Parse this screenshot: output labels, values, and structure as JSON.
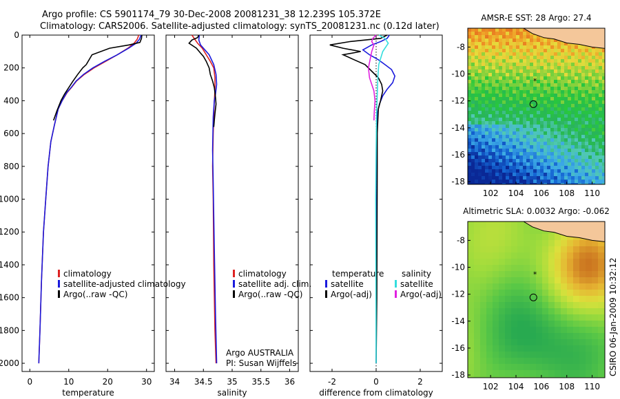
{
  "header": {
    "line1": "Argo profile: CS 5901174_79 30-Dec-2008 20081231_38 12.239S 105.372E",
    "line2": "Climatology: CARS2006. Satellite-adjusted climatology: synTS_20081231.nc (0.12d later)"
  },
  "footer": {
    "stamp": "CSIRO 06-Jan-2009 10:32:12"
  },
  "colors": {
    "red": "#dd2222",
    "blue": "#1a1adc",
    "black": "#000000",
    "cyan": "#33dddd",
    "magenta": "#e020e0"
  },
  "chart_data": [
    {
      "type": "line",
      "xlabel": "temperature",
      "xlim": [
        -2,
        32
      ],
      "xticks": [
        0,
        10,
        20,
        30
      ],
      "ylim": [
        0,
        2050
      ],
      "yticks": [
        0,
        200,
        400,
        600,
        800,
        1000,
        1200,
        1400,
        1600,
        1800,
        2000
      ],
      "legend": [
        "climatology",
        "satellite-adjusted climatology",
        "Argo(..raw -QC)"
      ],
      "series": [
        {
          "name": "climatology",
          "color": "red",
          "x": [
            28,
            27.6,
            26.8,
            25.2,
            22.5,
            19.5,
            16.5,
            14,
            12,
            10.7,
            9.6,
            8.3,
            7.3,
            6.3,
            5.4,
            4.7,
            4.1,
            3.5,
            3.0,
            2.6,
            2.3
          ],
          "y": [
            0,
            25,
            50,
            80,
            120,
            160,
            200,
            240,
            280,
            320,
            350,
            400,
            450,
            550,
            650,
            800,
            1000,
            1200,
            1500,
            1800,
            2000
          ]
        },
        {
          "name": "satellite-adjusted climatology",
          "color": "blue",
          "x": [
            28.6,
            28.2,
            27.3,
            25.4,
            22.5,
            19.2,
            16.2,
            13.8,
            11.9,
            10.6,
            9.5,
            8.3,
            7.3,
            6.3,
            5.4,
            4.7,
            4.1,
            3.5,
            3.0,
            2.6,
            2.3
          ],
          "y": [
            0,
            25,
            50,
            80,
            120,
            160,
            200,
            240,
            280,
            320,
            350,
            400,
            450,
            550,
            650,
            800,
            1000,
            1200,
            1500,
            1800,
            2000
          ]
        },
        {
          "name": "Argo(..raw -QC)",
          "color": "black",
          "x": [
            28.8,
            28.7,
            28.3,
            25.5,
            20.5,
            16,
            14.5,
            13.6,
            12.3,
            11.1,
            10.0,
            8.9,
            8.0,
            7.0,
            6.1
          ],
          "y": [
            0,
            20,
            45,
            60,
            80,
            120,
            180,
            200,
            240,
            280,
            320,
            360,
            400,
            460,
            520
          ]
        }
      ]
    },
    {
      "type": "line",
      "xlabel": "salinity",
      "xlim": [
        33.85,
        36.15
      ],
      "xticks": [
        34,
        34.5,
        35,
        35.5,
        36
      ],
      "ylim": [
        0,
        2050
      ],
      "legend": [
        "climatology",
        "satellite adj. clim.",
        "Argo(..raw -QC)"
      ],
      "annotations": [
        "Argo AUSTRALIA",
        "PI: Susan Wijffels"
      ],
      "series": [
        {
          "name": "climatology",
          "color": "red",
          "x": [
            34.3,
            34.35,
            34.4,
            34.48,
            34.55,
            34.62,
            34.68,
            34.7,
            34.7,
            34.69,
            34.68,
            34.67,
            34.66,
            34.67,
            34.68,
            34.7,
            34.72
          ],
          "y": [
            0,
            25,
            50,
            80,
            120,
            160,
            200,
            260,
            340,
            400,
            500,
            600,
            800,
            1000,
            1400,
            1800,
            2000
          ]
        },
        {
          "name": "satellite adj. clim.",
          "color": "blue",
          "x": [
            34.43,
            34.42,
            34.45,
            34.6,
            34.68,
            34.72,
            34.73,
            34.71,
            34.69,
            34.67,
            34.66,
            34.67,
            34.69,
            34.71,
            34.73
          ],
          "y": [
            0,
            30,
            60,
            120,
            180,
            240,
            300,
            360,
            400,
            500,
            700,
            900,
            1300,
            1700,
            2000
          ]
        },
        {
          "name": "Argo(..raw -QC)",
          "color": "black",
          "x": [
            34.42,
            34.4,
            34.3,
            34.25,
            34.38,
            34.45,
            34.5,
            34.55,
            34.6,
            34.62,
            34.66,
            34.69,
            34.7,
            34.71,
            34.72,
            34.71,
            34.7,
            34.69,
            34.68
          ],
          "y": [
            0,
            15,
            30,
            50,
            80,
            110,
            130,
            160,
            200,
            240,
            280,
            320,
            350,
            380,
            420,
            450,
            480,
            520,
            560
          ]
        }
      ]
    },
    {
      "type": "line",
      "xlabel": "difference from climatology",
      "xlim": [
        -3,
        3
      ],
      "xticks": [
        -2,
        0,
        2
      ],
      "ylim": [
        0,
        2050
      ],
      "legend_left_title": "temperature",
      "legend_left": [
        "satellite",
        "Argo(-adj)"
      ],
      "legend_right_title": "salinity",
      "legend_right": [
        "satellite",
        "Argo(-adj)"
      ],
      "series": [
        {
          "name": "temperature satellite",
          "color": "blue",
          "x": [
            0.6,
            0.5,
            0.2,
            -0.2,
            -0.6,
            -0.3,
            0.1,
            0.4,
            0.7,
            0.85,
            0.75,
            0.5,
            0.3,
            0.15,
            0.05,
            0.04,
            0.03,
            0.02,
            0.01,
            0.0
          ],
          "y": [
            0,
            20,
            40,
            60,
            90,
            120,
            150,
            180,
            210,
            250,
            290,
            330,
            370,
            420,
            480,
            600,
            800,
            1200,
            1600,
            2000
          ]
        },
        {
          "name": "temperature Argo(-adj)",
          "color": "black",
          "x": [
            0.5,
            0.2,
            -1.2,
            -2.1,
            -1.5,
            -0.7,
            -1.5,
            -1.0,
            -0.5,
            -0.2,
            0.1,
            0.25,
            0.3,
            0.2,
            0.1,
            0.05,
            0.05,
            0.04,
            0.03,
            0.0
          ],
          "y": [
            0,
            20,
            40,
            60,
            80,
            100,
            120,
            150,
            180,
            220,
            260,
            300,
            340,
            400,
            450,
            600,
            800,
            1200,
            1600,
            2000
          ]
        },
        {
          "name": "salinity satellite",
          "color": "cyan",
          "x": [
            0.13,
            0.4,
            0.55,
            0.3,
            0.12,
            0.08,
            0.06,
            0.04,
            0.02,
            0.0,
            -0.02,
            -0.01,
            0.0
          ],
          "y": [
            0,
            20,
            50,
            100,
            180,
            250,
            330,
            400,
            500,
            700,
            1000,
            1500,
            2000
          ]
        },
        {
          "name": "salinity Argo(-adj)",
          "color": "magenta",
          "x": [
            0.0,
            -0.15,
            -0.2,
            -0.1,
            -0.2,
            -0.35,
            -0.3,
            -0.2,
            -0.1,
            -0.05,
            -0.08,
            -0.1
          ],
          "y": [
            0,
            20,
            40,
            60,
            100,
            200,
            260,
            300,
            340,
            400,
            460,
            520
          ]
        }
      ]
    },
    {
      "type": "heatmap",
      "title": "AMSR-E SST: 28 Argo: 27.4",
      "xlim": [
        100.2,
        111
      ],
      "ylim": [
        -18.2,
        -6.6
      ],
      "xticks": [
        102,
        104,
        106,
        108,
        110
      ],
      "yticks": [
        -8,
        -10,
        -12,
        -14,
        -16,
        -18
      ],
      "profile_position": {
        "lon": 105.372,
        "lat": -12.239
      },
      "float_track_mark": {
        "lon": 105.5,
        "lat": -10.5
      }
    },
    {
      "type": "heatmap",
      "title": "Altimetric SLA: 0.0032 Argo: -0.062",
      "xlim": [
        100.2,
        111
      ],
      "ylim": [
        -18.2,
        -6.6
      ],
      "xticks": [
        102,
        104,
        106,
        108,
        110
      ],
      "yticks": [
        -8,
        -10,
        -12,
        -14,
        -16,
        -18
      ],
      "profile_position": {
        "lon": 105.372,
        "lat": -12.239
      },
      "float_track_mark": {
        "lon": 105.5,
        "lat": -10.5
      }
    }
  ]
}
